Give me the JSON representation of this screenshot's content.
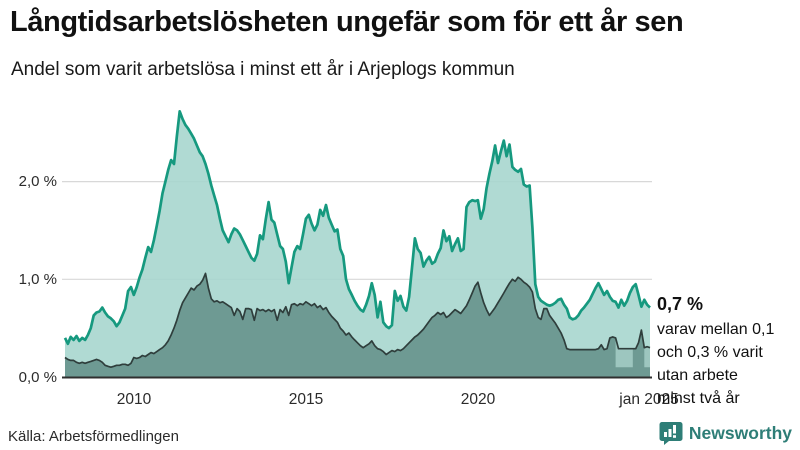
{
  "title": "Långtidsarbetslösheten ungefär som för ett år sen",
  "subtitle": "Andel som varit arbetslösa i minst ett år i Arjeplogs kommun",
  "source": "Källa: Arbetsförmedlingen",
  "branding": {
    "name": "Newsworthy",
    "color": "#2e7e77"
  },
  "annotation": {
    "value_label": "0,7 %",
    "lines": [
      "varav mellan 0,1",
      "och 0,3 % varit",
      "utan arbete",
      "minst två år"
    ]
  },
  "chart_data": {
    "type": "area",
    "title": "Andel som varit arbetslösa i minst ett år i Arjeplogs kommun",
    "x_start": "2008-01",
    "x_end": "2025-01",
    "x_tick_labels": [
      "2010",
      "2015",
      "2020",
      "jan 2025"
    ],
    "x_tick_month_indices": [
      24,
      84,
      144,
      204
    ],
    "y_tick_labels": [
      "0,0 %",
      "1,0 %",
      "2,0 %"
    ],
    "y_tick_values": [
      0,
      1,
      2
    ],
    "ylim": [
      0,
      2.85
    ],
    "grid": "horizontal",
    "legend_position": "none",
    "unit": "%",
    "series": [
      {
        "name": "Arbetslösa minst ett år",
        "line_color": "#16997f",
        "fill_color": "#a5d5cd",
        "values": [
          0.4,
          0.34,
          0.41,
          0.38,
          0.42,
          0.37,
          0.4,
          0.38,
          0.43,
          0.5,
          0.63,
          0.66,
          0.67,
          0.71,
          0.66,
          0.62,
          0.6,
          0.57,
          0.52,
          0.56,
          0.63,
          0.7,
          0.88,
          0.92,
          0.84,
          0.92,
          1.02,
          1.1,
          1.22,
          1.33,
          1.28,
          1.4,
          1.55,
          1.7,
          1.88,
          2.0,
          2.12,
          2.22,
          2.18,
          2.46,
          2.72,
          2.64,
          2.58,
          2.54,
          2.49,
          2.44,
          2.37,
          2.3,
          2.26,
          2.18,
          2.08,
          1.96,
          1.86,
          1.76,
          1.62,
          1.5,
          1.44,
          1.38,
          1.46,
          1.52,
          1.5,
          1.46,
          1.4,
          1.34,
          1.28,
          1.22,
          1.19,
          1.26,
          1.45,
          1.41,
          1.61,
          1.79,
          1.61,
          1.58,
          1.46,
          1.34,
          1.31,
          1.18,
          0.96,
          1.12,
          1.28,
          1.34,
          1.31,
          1.46,
          1.62,
          1.66,
          1.57,
          1.5,
          1.56,
          1.71,
          1.65,
          1.76,
          1.63,
          1.56,
          1.49,
          1.51,
          1.31,
          1.24,
          1.0,
          0.9,
          0.84,
          0.78,
          0.73,
          0.69,
          0.67,
          0.74,
          0.83,
          0.96,
          0.84,
          0.61,
          0.77,
          0.56,
          0.52,
          0.5,
          0.53,
          0.88,
          0.78,
          0.83,
          0.72,
          0.68,
          0.82,
          1.12,
          1.42,
          1.31,
          1.27,
          1.13,
          1.19,
          1.23,
          1.16,
          1.18,
          1.26,
          1.32,
          1.5,
          1.39,
          1.44,
          1.29,
          1.36,
          1.42,
          1.29,
          1.31,
          1.74,
          1.79,
          1.81,
          1.8,
          1.81,
          1.62,
          1.72,
          1.93,
          2.08,
          2.21,
          2.37,
          2.19,
          2.31,
          2.42,
          2.26,
          2.38,
          2.15,
          2.12,
          2.1,
          2.13,
          1.97,
          1.95,
          1.96,
          1.53,
          0.95,
          0.82,
          0.78,
          0.76,
          0.74,
          0.73,
          0.74,
          0.76,
          0.79,
          0.8,
          0.74,
          0.7,
          0.61,
          0.59,
          0.6,
          0.63,
          0.68,
          0.71,
          0.75,
          0.79,
          0.85,
          0.91,
          0.96,
          0.9,
          0.84,
          0.88,
          0.82,
          0.78,
          0.77,
          0.71,
          0.79,
          0.73,
          0.78,
          0.86,
          0.92,
          0.95,
          0.84,
          0.72,
          0.79,
          0.74,
          0.71
        ],
        "end_value": 0.7
      },
      {
        "name": "Arbetslösa minst två år",
        "line_color": "#2f3e3c",
        "fill_color": "#6e9a93",
        "values": [
          0.2,
          0.18,
          0.17,
          0.17,
          0.15,
          0.14,
          0.15,
          0.14,
          0.15,
          0.16,
          0.17,
          0.18,
          0.17,
          0.15,
          0.12,
          0.11,
          0.1,
          0.11,
          0.12,
          0.12,
          0.13,
          0.13,
          0.12,
          0.14,
          0.2,
          0.19,
          0.2,
          0.22,
          0.21,
          0.23,
          0.25,
          0.24,
          0.26,
          0.28,
          0.3,
          0.33,
          0.37,
          0.43,
          0.5,
          0.58,
          0.68,
          0.76,
          0.81,
          0.86,
          0.91,
          0.89,
          0.93,
          0.95,
          0.99,
          1.06,
          0.91,
          0.8,
          0.77,
          0.78,
          0.76,
          0.77,
          0.75,
          0.73,
          0.71,
          0.63,
          0.7,
          0.67,
          0.59,
          0.7,
          0.7,
          0.69,
          0.58,
          0.7,
          0.68,
          0.69,
          0.67,
          0.69,
          0.67,
          0.69,
          0.58,
          0.69,
          0.66,
          0.72,
          0.63,
          0.74,
          0.75,
          0.73,
          0.75,
          0.74,
          0.77,
          0.75,
          0.73,
          0.75,
          0.71,
          0.73,
          0.69,
          0.71,
          0.66,
          0.62,
          0.59,
          0.56,
          0.5,
          0.47,
          0.43,
          0.45,
          0.41,
          0.38,
          0.35,
          0.32,
          0.3,
          0.32,
          0.34,
          0.37,
          0.32,
          0.29,
          0.28,
          0.26,
          0.23,
          0.25,
          0.27,
          0.26,
          0.28,
          0.27,
          0.29,
          0.32,
          0.35,
          0.38,
          0.41,
          0.43,
          0.46,
          0.49,
          0.53,
          0.57,
          0.61,
          0.63,
          0.66,
          0.64,
          0.66,
          0.61,
          0.63,
          0.66,
          0.69,
          0.67,
          0.65,
          0.69,
          0.73,
          0.79,
          0.86,
          0.93,
          0.97,
          0.86,
          0.76,
          0.69,
          0.63,
          0.67,
          0.71,
          0.76,
          0.81,
          0.86,
          0.91,
          0.96,
          1.0,
          0.98,
          1.02,
          1.0,
          0.97,
          0.95,
          0.92,
          0.87,
          0.7,
          0.61,
          0.59,
          0.7,
          0.7,
          0.63,
          0.59,
          0.55,
          0.5,
          0.45,
          0.38,
          0.29,
          0.28,
          0.28,
          0.28,
          0.28,
          0.28,
          0.28,
          0.28,
          0.28,
          0.28,
          0.28,
          0.29,
          0.33,
          0.28,
          0.29,
          0.4,
          0.41,
          0.4,
          0.29,
          0.29,
          0.29,
          0.29,
          0.29,
          0.29,
          0.29,
          0.35,
          0.48,
          0.3,
          0.31,
          0.3
        ],
        "uncertain_ranges": [
          {
            "from": 192,
            "to": 198
          },
          {
            "from": 202,
            "to": 204
          }
        ],
        "uncertain_floor": 0.1,
        "uncertain_fill": "#9dc6bf",
        "end_value_range": [
          0.1,
          0.3
        ]
      }
    ],
    "colors": {
      "grid": "#d8d8d8",
      "axis_line": "#2f2f2f",
      "background": "#ffffff"
    }
  }
}
